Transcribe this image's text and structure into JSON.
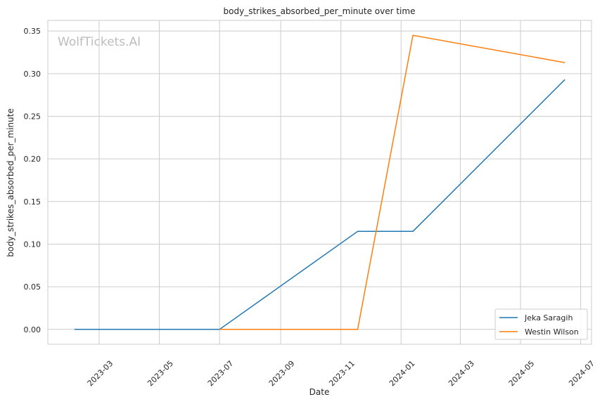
{
  "chart_data": {
    "type": "line",
    "title": "body_strikes_absorbed_per_minute over time",
    "xlabel": "Date",
    "ylabel": "body_strikes_absorbed_per_minute",
    "watermark": "WolfTickets.AI",
    "grid": true,
    "legend_position": "bottom-right",
    "xlim": [
      "2023-01-08",
      "2024-07-12"
    ],
    "ylim": [
      -0.0175,
      0.3625
    ],
    "x_ticks": [
      "2023-03",
      "2023-05",
      "2023-07",
      "2023-09",
      "2023-11",
      "2024-01",
      "2024-03",
      "2024-05",
      "2024-07"
    ],
    "y_ticks": [
      "0.00",
      "0.05",
      "0.10",
      "0.15",
      "0.20",
      "0.25",
      "0.30",
      "0.35"
    ],
    "series": [
      {
        "name": "Jeka Saragih",
        "color": "#1f77b4",
        "points": [
          {
            "x": "2023-02-04",
            "y": 0.0
          },
          {
            "x": "2023-07-01",
            "y": 0.0
          },
          {
            "x": "2023-11-18",
            "y": 0.115
          },
          {
            "x": "2024-01-13",
            "y": 0.115
          },
          {
            "x": "2024-06-15",
            "y": 0.293
          }
        ]
      },
      {
        "name": "Westin Wilson",
        "color": "#ff7f0e",
        "points": [
          {
            "x": "2023-07-01",
            "y": 0.0
          },
          {
            "x": "2023-11-18",
            "y": 0.0
          },
          {
            "x": "2024-01-13",
            "y": 0.345
          },
          {
            "x": "2024-06-15",
            "y": 0.313
          }
        ]
      }
    ]
  }
}
